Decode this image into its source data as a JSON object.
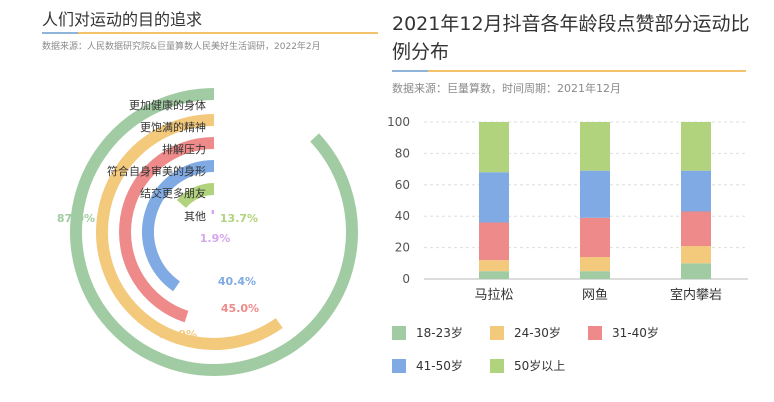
{
  "left": {
    "title": "人们对运动的目的追求",
    "source": "数据来源：人民数据研究院&巨量算数人民美好生活调研，2022年2月"
  },
  "right": {
    "title": "2021年12月抖音各年龄段点赞部分运动比例分布",
    "source": "数据来源：巨量算数，时间周期：2021年12月"
  },
  "chart_data": [
    {
      "type": "radial-bar",
      "title": "人们对运动的目的追求",
      "categories": [
        "更加健康的身体",
        "更饱满的精神",
        "排解压力",
        "符合自身审美的身形",
        "结交更多朋友",
        "其他"
      ],
      "values": [
        87.0,
        59.9,
        45.0,
        40.4,
        13.7,
        1.9
      ],
      "value_labels": [
        "87.0%",
        "59.9%",
        "45.0%",
        "40.4%",
        "13.7%",
        "1.9%"
      ],
      "colors": [
        "#a1cca3",
        "#f3c97c",
        "#ee8a8a",
        "#7faae3",
        "#b1d37d",
        "#d4a6ee"
      ],
      "max": 100
    },
    {
      "type": "bar",
      "stacked": true,
      "title": "2021年12月抖音各年龄段点赞部分运动比例分布",
      "categories": [
        "马拉松",
        "网鱼",
        "室内攀岩"
      ],
      "series": [
        {
          "name": "18-23岁",
          "values": [
            5,
            5,
            10
          ],
          "color": "#a1cca3"
        },
        {
          "name": "24-30岁",
          "values": [
            7,
            9,
            11
          ],
          "color": "#f3c97c"
        },
        {
          "name": "31-40岁",
          "values": [
            24,
            25,
            22
          ],
          "color": "#ee8a8a"
        },
        {
          "name": "41-50岁",
          "values": [
            32,
            30,
            26
          ],
          "color": "#7faae3"
        },
        {
          "name": "50岁以上",
          "values": [
            32,
            31,
            31
          ],
          "color": "#b1d37d"
        }
      ],
      "ylim": [
        0,
        100
      ],
      "yticks": [
        0,
        20,
        40,
        60,
        80,
        100
      ],
      "grid": true,
      "legend": "bottom"
    }
  ]
}
